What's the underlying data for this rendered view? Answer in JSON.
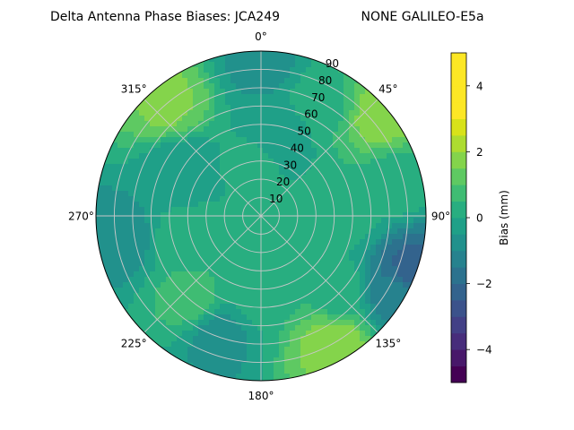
{
  "title_left": "Delta Antenna Phase Biases: JCA249",
  "title_right": "NONE GALILEO-E5a",
  "chart_data": {
    "type": "heatmap",
    "projection": "polar",
    "theta_zero": "top",
    "theta_direction": "clockwise",
    "angle_labels": [
      "0°",
      "45°",
      "90°",
      "135°",
      "180°",
      "225°",
      "270°",
      "315°"
    ],
    "radial_labels": [
      "10",
      "20",
      "30",
      "40",
      "50",
      "60",
      "70",
      "80",
      "90"
    ],
    "radial_range": [
      0,
      90
    ],
    "grid": true,
    "colorbar": {
      "label": "Bias (mm)",
      "ticks": [
        "−4",
        "−2",
        "0",
        "2",
        "4"
      ],
      "range": [
        -5,
        5
      ],
      "levels": [
        -5,
        -4.5,
        -4,
        -3.5,
        -3,
        -2.5,
        -2,
        -1.5,
        -1,
        -0.5,
        0,
        0.5,
        1,
        1.5,
        2,
        2.5,
        3,
        3.5,
        4,
        4.5,
        5
      ],
      "colors": [
        "#440154",
        "#472c7a",
        "#3b518b",
        "#2c718e",
        "#21908d",
        "#27ad81",
        "#5cc863",
        "#aadc32",
        "#fde725",
        "#fde725"
      ],
      "band_colors": [
        "#440154",
        "#48186a",
        "#472d7b",
        "#424086",
        "#3b528b",
        "#33638d",
        "#2c728e",
        "#26828e",
        "#21918c",
        "#1fa088",
        "#28ae80",
        "#3fbc73",
        "#5ec962",
        "#84d44b",
        "#addc30",
        "#d8e219",
        "#fde725",
        "#fde725",
        "#fde725",
        "#fde725"
      ]
    },
    "field_samples": [
      {
        "theta": 0,
        "r": 0,
        "bias": 0.3
      },
      {
        "theta": 50,
        "r": 85,
        "bias": 1.8
      },
      {
        "theta": 320,
        "r": 80,
        "bias": 1.6
      },
      {
        "theta": 150,
        "r": 80,
        "bias": 1.8
      },
      {
        "theta": 120,
        "r": 85,
        "bias": -1.4
      },
      {
        "theta": 110,
        "r": 88,
        "bias": -2.2
      },
      {
        "theta": 0,
        "r": 85,
        "bias": -0.7
      },
      {
        "theta": 260,
        "r": 80,
        "bias": -0.8
      },
      {
        "theta": 200,
        "r": 70,
        "bias": -0.7
      },
      {
        "theta": 300,
        "r": 50,
        "bias": -0.5
      },
      {
        "theta": 10,
        "r": 45,
        "bias": -0.5
      },
      {
        "theta": 90,
        "r": 45,
        "bias": 0.2
      },
      {
        "theta": 180,
        "r": 40,
        "bias": 0.3
      },
      {
        "theta": 250,
        "r": 40,
        "bias": 0.4
      },
      {
        "theta": 220,
        "r": 60,
        "bias": 0.7
      },
      {
        "theta": 75,
        "r": 75,
        "bias": 0.3
      },
      {
        "theta": 30,
        "r": 70,
        "bias": 0.4
      },
      {
        "theta": 135,
        "r": 60,
        "bias": 0.3
      },
      {
        "theta": 350,
        "r": 30,
        "bias": 0.2
      }
    ]
  }
}
